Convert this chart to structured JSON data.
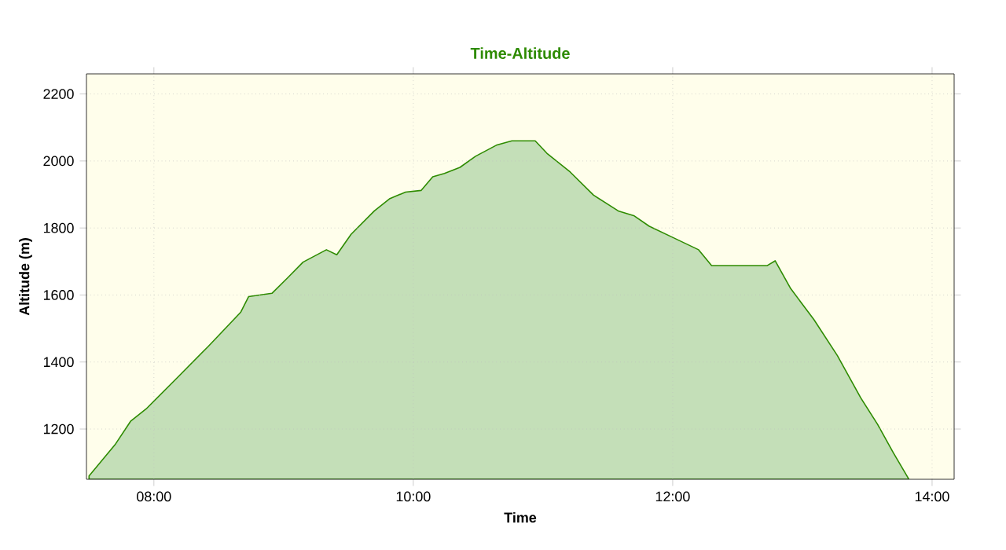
{
  "chart_data": {
    "type": "area",
    "title": "Time-Altitude",
    "xlabel": "Time",
    "ylabel": "Altitude (m)",
    "color": "#2e8b00",
    "grid": true,
    "xlim": [
      7.48,
      14.17
    ],
    "ylim": [
      1050,
      2260
    ],
    "xticks": [
      {
        "value": 8,
        "label": "08:00"
      },
      {
        "value": 10,
        "label": "10:00"
      },
      {
        "value": 12,
        "label": "12:00"
      },
      {
        "value": 14,
        "label": "14:00"
      }
    ],
    "yticks": [
      1200,
      1400,
      1600,
      1800,
      2000,
      2200
    ],
    "x": [
      7.5,
      7.7,
      7.82,
      7.94,
      8.18,
      8.42,
      8.67,
      8.73,
      8.91,
      9.03,
      9.15,
      9.33,
      9.41,
      9.52,
      9.7,
      9.82,
      9.94,
      10.06,
      10.15,
      10.24,
      10.36,
      10.48,
      10.64,
      10.76,
      10.94,
      11.03,
      11.21,
      11.39,
      11.58,
      11.7,
      11.82,
      12.0,
      12.2,
      12.3,
      12.36,
      12.73,
      12.79,
      12.91,
      13.09,
      13.27,
      13.45,
      13.58,
      13.7,
      13.82
    ],
    "values": [
      1060,
      1153,
      1223,
      1260,
      1353,
      1447,
      1549,
      1595,
      1605,
      1651,
      1698,
      1735,
      1720,
      1781,
      1851,
      1888,
      1907,
      1912,
      1953,
      1963,
      1981,
      2014,
      2047,
      2060,
      2060,
      2023,
      1967,
      1898,
      1851,
      1837,
      1805,
      1772,
      1735,
      1688,
      1688,
      1688,
      1702,
      1619,
      1526,
      1419,
      1293,
      1214,
      1130,
      1051
    ]
  }
}
